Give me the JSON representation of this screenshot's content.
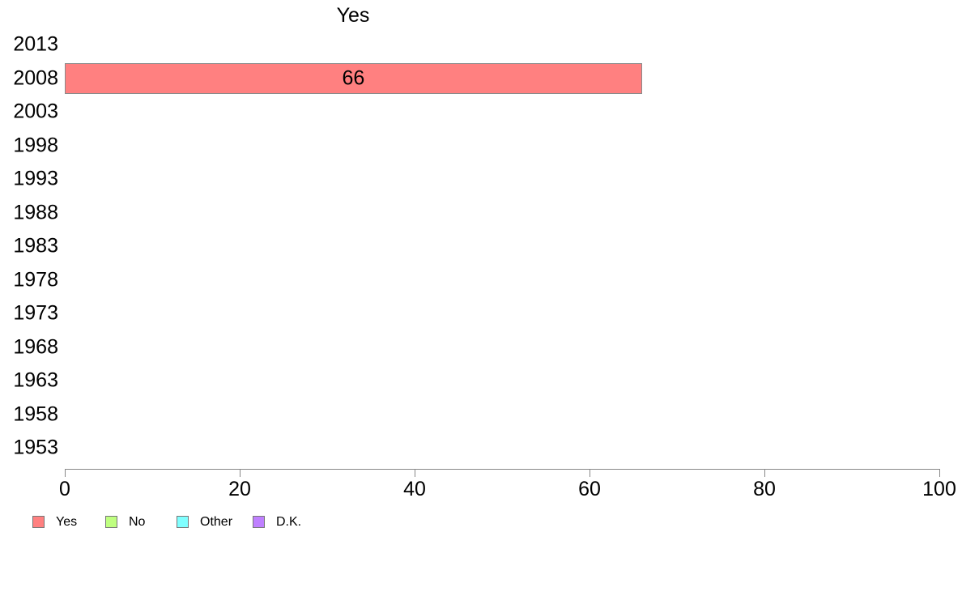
{
  "chart_data": {
    "type": "bar",
    "orientation": "horizontal",
    "title": "Yes",
    "categories": [
      "2013",
      "2008",
      "2003",
      "1998",
      "1993",
      "1988",
      "1983",
      "1978",
      "1973",
      "1968",
      "1963",
      "1958",
      "1953"
    ],
    "series": [
      {
        "name": "Yes",
        "color": "#FF8080",
        "values": [
          null,
          66,
          null,
          null,
          null,
          null,
          null,
          null,
          null,
          null,
          null,
          null,
          null
        ]
      }
    ],
    "bar_value_labels": [
      "",
      "66",
      "",
      "",
      "",
      "",
      "",
      "",
      "",
      "",
      "",
      "",
      ""
    ],
    "xlabel": "",
    "ylabel": "",
    "xlim": [
      0,
      100
    ],
    "xticks": [
      0,
      20,
      40,
      60,
      80,
      100
    ],
    "grid": false,
    "legend": {
      "position": "bottom-left",
      "entries": [
        {
          "label": "Yes",
          "color": "#FF8080"
        },
        {
          "label": "No",
          "color": "#BFFF80"
        },
        {
          "label": "Other",
          "color": "#80FFFF"
        },
        {
          "label": "D.K.",
          "color": "#BF80FF"
        }
      ]
    },
    "colors": {
      "axis": "#888888",
      "bar_border": "#8A8A8A",
      "text": "#000000",
      "background": "#FFFFFF"
    }
  }
}
